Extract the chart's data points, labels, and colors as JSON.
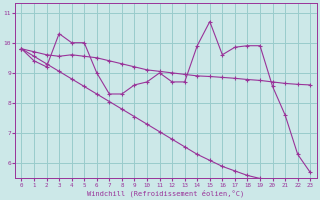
{
  "xlabel": "Windchill (Refroidissement éolien,°C)",
  "xlim": [
    -0.5,
    23.5
  ],
  "ylim": [
    5.5,
    11.3
  ],
  "yticks": [
    6,
    7,
    8,
    9,
    10,
    11
  ],
  "xticks": [
    0,
    1,
    2,
    3,
    4,
    5,
    6,
    7,
    8,
    9,
    10,
    11,
    12,
    13,
    14,
    15,
    16,
    17,
    18,
    19,
    20,
    21,
    22,
    23
  ],
  "background_color": "#cce8e8",
  "line_color": "#993399",
  "grid_color": "#99cccc",
  "line1_y": [
    9.8,
    9.4,
    9.2,
    10.3,
    10.0,
    10.0,
    9.0,
    8.3,
    8.3,
    8.6,
    8.7,
    9.0,
    8.7,
    8.7,
    9.9,
    10.7,
    9.6,
    9.85,
    9.9,
    9.9,
    8.55,
    7.6,
    6.3,
    5.7
  ],
  "line2_y": [
    9.8,
    9.7,
    9.6,
    9.55,
    9.6,
    9.55,
    9.5,
    9.4,
    9.3,
    9.2,
    9.1,
    9.05,
    9.0,
    8.95,
    8.9,
    8.88,
    8.85,
    8.82,
    8.78,
    8.75,
    8.7,
    8.65,
    8.62,
    8.6
  ],
  "line3_y": [
    9.8,
    9.55,
    9.3,
    9.05,
    8.8,
    8.55,
    8.3,
    8.05,
    7.8,
    7.55,
    7.3,
    7.05,
    6.8,
    6.55,
    6.3,
    6.1,
    5.9,
    5.75,
    5.6,
    5.5,
    5.4,
    5.32,
    5.25,
    5.2
  ]
}
